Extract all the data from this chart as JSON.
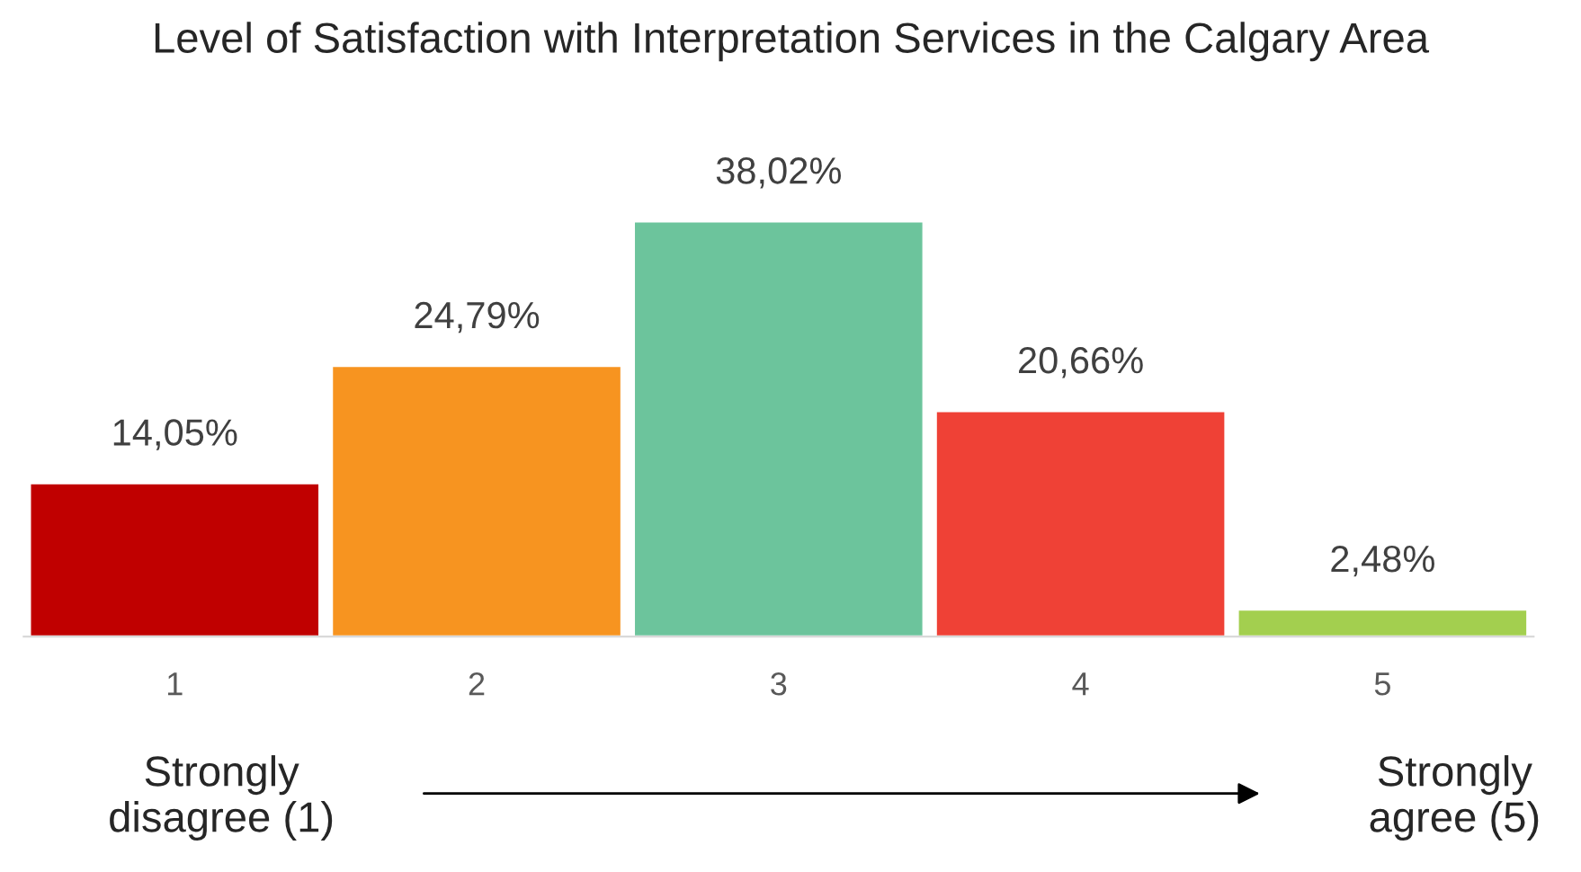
{
  "chart_data": {
    "type": "bar",
    "title": "Level of Satisfaction with Interpretation Services in the Calgary Area",
    "categories": [
      "1",
      "2",
      "3",
      "4",
      "5"
    ],
    "values": [
      14.05,
      24.79,
      38.02,
      20.66,
      2.48
    ],
    "value_labels": [
      "14,05%",
      "24,79%",
      "38,02%",
      "20,66%",
      "2,48%"
    ],
    "colors": [
      "#c00000",
      "#f79420",
      "#6cc49c",
      "#ef4136",
      "#a3cf4f"
    ],
    "annotations": [
      "Strongly\ndisagree (1)",
      "Strongly\nagree (5)"
    ],
    "grid": false,
    "legend": false
  }
}
